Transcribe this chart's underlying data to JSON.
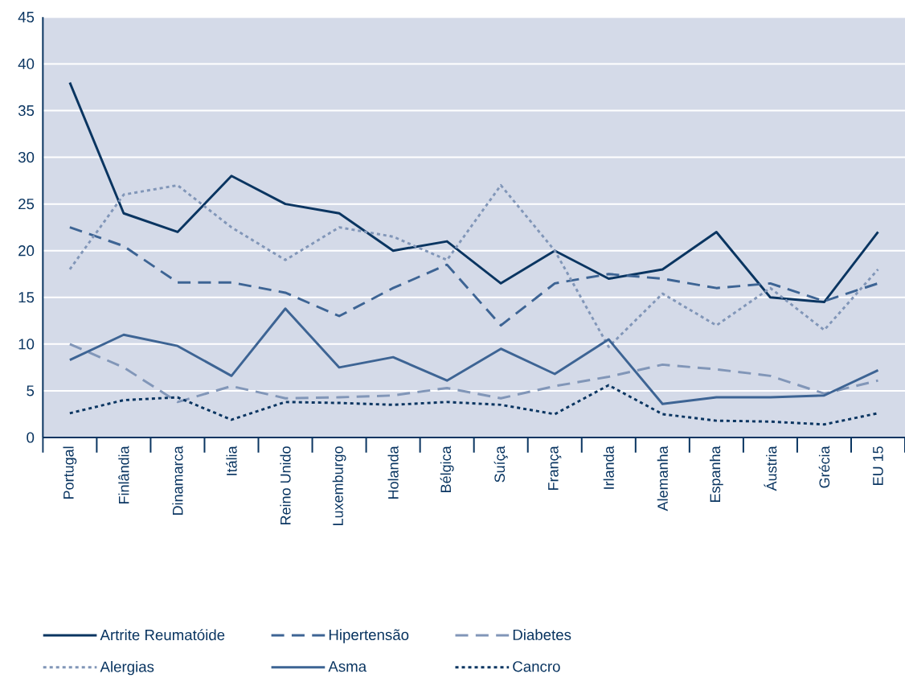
{
  "chart_data": {
    "type": "line",
    "categories": [
      "Portugal",
      "Finlândia",
      "Dinamarca",
      "Itália",
      "Reino Unido",
      "Luxemburgo",
      "Holanda",
      "Bélgica",
      "Suíça",
      "França",
      "Irlanda",
      "Alemanha",
      "Espanha",
      "Áustria",
      "Grécia",
      "EU 15"
    ],
    "ylim": [
      0,
      45
    ],
    "yticks": [
      0,
      5,
      10,
      15,
      20,
      25,
      30,
      35,
      40,
      45
    ],
    "grid": "y",
    "legend": "bottom",
    "series": [
      {
        "name": "Artrite Reumatóide",
        "color": "#0a3561",
        "line_style": "solid",
        "values": [
          38,
          24,
          22,
          28,
          25,
          24,
          20,
          21,
          16.5,
          20,
          17,
          18,
          22,
          15,
          14.5,
          22
        ]
      },
      {
        "name": "Hipertensão",
        "color": "#3d6494",
        "line_style": "dashed",
        "values": [
          22.5,
          20.5,
          16.6,
          16.6,
          15.5,
          13,
          16,
          18.5,
          12,
          16.5,
          17.5,
          17,
          16,
          16.5,
          14.6,
          16.5
        ]
      },
      {
        "name": "Diabetes",
        "color": "#8196b8",
        "line_style": "dashed",
        "values": [
          10,
          7.5,
          3.8,
          5.5,
          4.2,
          4.3,
          4.5,
          5.3,
          4.2,
          5.5,
          6.5,
          7.8,
          7.3,
          6.6,
          4.7,
          6.1
        ]
      },
      {
        "name": "Alergias",
        "color": "#8196b8",
        "line_style": "dotted",
        "values": [
          18,
          26,
          27,
          22.5,
          19,
          22.5,
          21.5,
          19,
          27,
          20,
          9.7,
          15.4,
          12,
          16,
          11.5,
          18
        ]
      },
      {
        "name": "Asma",
        "color": "#3d6494",
        "line_style": "solid",
        "values": [
          8.3,
          11,
          9.8,
          6.6,
          13.8,
          7.5,
          8.6,
          6.1,
          9.5,
          6.8,
          10.5,
          3.6,
          4.3,
          4.3,
          4.5,
          7.2
        ]
      },
      {
        "name": "Cancro",
        "color": "#0a3561",
        "line_style": "dotted",
        "values": [
          2.6,
          4,
          4.3,
          1.9,
          3.8,
          3.7,
          3.5,
          3.8,
          3.5,
          2.5,
          5.6,
          2.5,
          1.8,
          1.7,
          1.4,
          2.6
        ]
      }
    ]
  }
}
